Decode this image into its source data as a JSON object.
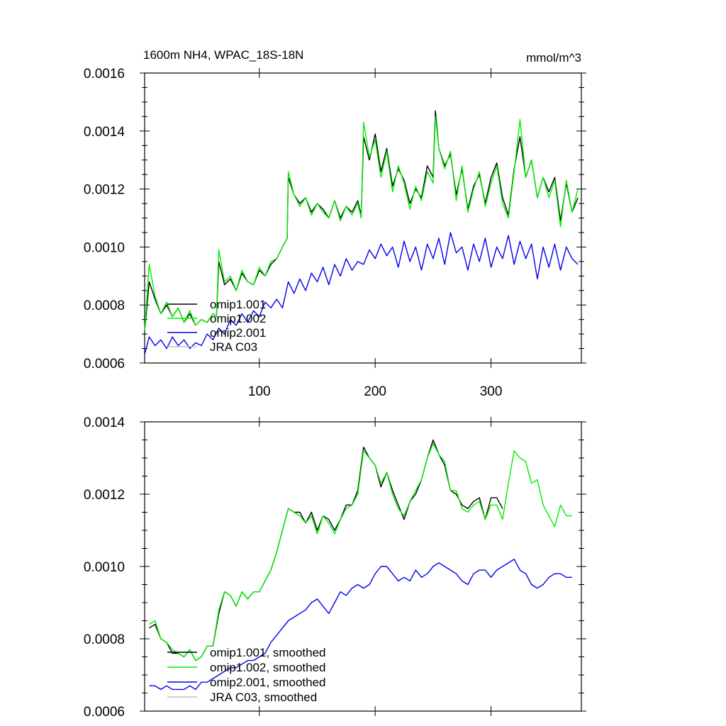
{
  "chart_data": [
    {
      "type": "line",
      "title": "1600m NH4, WPAC_18S-18N",
      "units": "mmol/m^3",
      "xlim": [
        1,
        378
      ],
      "ylim": [
        0.0006,
        0.0016
      ],
      "xticks": [
        100,
        200,
        300
      ],
      "xtick_labels": [
        "100",
        "200",
        "300"
      ],
      "yticks": [
        0.0006,
        0.0008,
        0.001,
        0.0012,
        0.0014,
        0.0016
      ],
      "ytick_labels": [
        "0.0006",
        "0.0008",
        "0.0010",
        "0.0012",
        "0.0014",
        "0.0016"
      ],
      "legend_position": "lower-left",
      "series": [
        {
          "name": "omip1.001",
          "color": "#000000",
          "x": [
            1,
            5,
            10,
            15,
            20,
            25,
            30,
            35,
            40,
            45,
            50,
            55,
            60,
            63,
            65,
            70,
            75,
            80,
            85,
            90,
            95,
            100,
            105,
            110,
            115,
            120,
            124,
            125,
            130,
            135,
            140,
            145,
            150,
            155,
            160,
            165,
            170,
            175,
            180,
            185,
            188,
            190,
            195,
            200,
            205,
            210,
            215,
            220,
            225,
            230,
            235,
            240,
            245,
            250,
            252,
            255,
            260,
            265,
            270,
            275,
            280,
            285,
            290,
            295,
            300,
            305,
            310,
            315,
            320,
            325,
            330,
            335,
            340,
            345,
            350,
            355,
            360,
            365,
            370,
            375
          ],
          "values": [
            0.00071,
            0.00088,
            0.00082,
            0.00077,
            0.0008,
            0.00076,
            0.00079,
            0.00074,
            0.00077,
            0.00073,
            0.00075,
            0.00074,
            0.00077,
            0.00076,
            0.00095,
            0.00087,
            0.00089,
            0.00085,
            0.00091,
            0.00088,
            0.00087,
            0.00092,
            0.0009,
            0.00094,
            0.00096,
            0.001,
            0.00103,
            0.00124,
            0.00118,
            0.00115,
            0.00117,
            0.00112,
            0.00115,
            0.00113,
            0.0011,
            0.00116,
            0.0011,
            0.00114,
            0.00112,
            0.00116,
            0.00111,
            0.00138,
            0.0013,
            0.00139,
            0.00126,
            0.00134,
            0.00121,
            0.00127,
            0.00123,
            0.00115,
            0.0012,
            0.00117,
            0.00128,
            0.00124,
            0.00147,
            0.00134,
            0.00128,
            0.00132,
            0.00118,
            0.00127,
            0.00113,
            0.00121,
            0.00125,
            0.00115,
            0.00124,
            0.00129,
            0.00117,
            0.00111,
            0.00127,
            0.00138,
            0.00124,
            0.0013,
            0.00117,
            0.00124,
            0.00119,
            0.00124,
            0.00109,
            0.00122,
            0.00112,
            0.00117
          ]
        },
        {
          "name": "omip1.002",
          "color": "#00ee00",
          "x": [
            1,
            5,
            10,
            15,
            20,
            25,
            30,
            35,
            40,
            45,
            50,
            55,
            60,
            63,
            65,
            70,
            75,
            80,
            85,
            90,
            95,
            100,
            105,
            110,
            115,
            120,
            124,
            125,
            130,
            135,
            140,
            145,
            150,
            155,
            160,
            165,
            170,
            175,
            180,
            185,
            188,
            190,
            195,
            200,
            205,
            210,
            215,
            220,
            225,
            230,
            235,
            240,
            245,
            250,
            252,
            255,
            260,
            265,
            270,
            275,
            280,
            285,
            290,
            295,
            300,
            305,
            310,
            315,
            320,
            325,
            330,
            335,
            340,
            345,
            350,
            355,
            360,
            365,
            370,
            375
          ],
          "values": [
            0.00071,
            0.00094,
            0.00083,
            0.00077,
            0.00081,
            0.00076,
            0.00079,
            0.00074,
            0.00078,
            0.00073,
            0.00075,
            0.00074,
            0.00077,
            0.00076,
            0.00099,
            0.00088,
            0.0009,
            0.00085,
            0.00092,
            0.00088,
            0.00087,
            0.00093,
            0.0009,
            0.00095,
            0.00096,
            0.001,
            0.00103,
            0.00126,
            0.00118,
            0.00114,
            0.00117,
            0.00111,
            0.00115,
            0.00112,
            0.0011,
            0.00116,
            0.00109,
            0.00114,
            0.00111,
            0.00115,
            0.0011,
            0.00143,
            0.00131,
            0.00137,
            0.00124,
            0.00133,
            0.00119,
            0.00128,
            0.00122,
            0.00113,
            0.00121,
            0.00116,
            0.00126,
            0.00122,
            0.00145,
            0.00134,
            0.00127,
            0.00133,
            0.00116,
            0.00128,
            0.00112,
            0.0012,
            0.00126,
            0.00114,
            0.00122,
            0.00128,
            0.00115,
            0.0011,
            0.00126,
            0.00144,
            0.00124,
            0.0013,
            0.00117,
            0.00124,
            0.00117,
            0.00123,
            0.00107,
            0.00123,
            0.00112,
            0.0012
          ]
        },
        {
          "name": "omip2.001",
          "color": "#0000ee",
          "x": [
            1,
            5,
            10,
            15,
            20,
            25,
            30,
            35,
            40,
            45,
            50,
            55,
            60,
            65,
            70,
            75,
            80,
            85,
            90,
            95,
            100,
            105,
            110,
            115,
            120,
            125,
            130,
            135,
            140,
            145,
            150,
            155,
            160,
            165,
            170,
            175,
            180,
            185,
            190,
            195,
            200,
            205,
            210,
            215,
            220,
            225,
            230,
            235,
            240,
            245,
            250,
            255,
            260,
            265,
            270,
            275,
            280,
            285,
            290,
            295,
            300,
            305,
            310,
            315,
            320,
            325,
            330,
            335,
            340,
            345,
            350,
            355,
            360,
            365,
            370,
            375
          ],
          "values": [
            0.00063,
            0.00069,
            0.00066,
            0.00068,
            0.00065,
            0.00069,
            0.00066,
            0.00068,
            0.00065,
            0.00067,
            0.00066,
            0.0007,
            0.00068,
            0.00072,
            0.0007,
            0.00075,
            0.00073,
            0.00077,
            0.00074,
            0.00078,
            0.00076,
            0.00081,
            0.00079,
            0.00082,
            0.00079,
            0.00088,
            0.00084,
            0.00089,
            0.00085,
            0.00091,
            0.00088,
            0.00093,
            0.00087,
            0.00094,
            0.0009,
            0.00096,
            0.00092,
            0.00095,
            0.00094,
            0.00099,
            0.00096,
            0.00101,
            0.00097,
            0.001,
            0.00093,
            0.00102,
            0.00095,
            0.001,
            0.00092,
            0.00101,
            0.00096,
            0.00103,
            0.00094,
            0.00105,
            0.00098,
            0.001,
            0.00092,
            0.00101,
            0.00095,
            0.00103,
            0.00093,
            0.001,
            0.00096,
            0.00104,
            0.00094,
            0.00102,
            0.00096,
            0.00101,
            0.00089,
            0.001,
            0.00093,
            0.00101,
            0.00092,
            0.001,
            0.00096,
            0.00094
          ]
        },
        {
          "name": "JRA C03",
          "color": "#c0c0c0",
          "x": [],
          "values": []
        }
      ]
    },
    {
      "type": "line",
      "ylim": [
        0.0006,
        0.0014
      ],
      "xlim": [
        1,
        378
      ],
      "xticks": [
        100,
        200,
        300
      ],
      "yticks": [
        0.0006,
        0.0008,
        0.001,
        0.0012,
        0.0014
      ],
      "ytick_labels": [
        "0.0006",
        "0.0008",
        "0.0010",
        "0.0012",
        "0.0014"
      ],
      "legend_position": "lower-left",
      "series": [
        {
          "name": "omip1.001, smoothed",
          "color": "#000000",
          "x": [
            5,
            10,
            15,
            20,
            25,
            30,
            35,
            40,
            45,
            50,
            55,
            60,
            65,
            70,
            75,
            80,
            85,
            90,
            95,
            100,
            105,
            110,
            115,
            120,
            125,
            130,
            135,
            140,
            145,
            150,
            155,
            160,
            165,
            170,
            175,
            180,
            185,
            190,
            195,
            200,
            205,
            210,
            215,
            220,
            225,
            230,
            235,
            240,
            245,
            250,
            255,
            260,
            265,
            270,
            275,
            280,
            285,
            290,
            295,
            300,
            305,
            310
          ],
          "values": [
            0.00083,
            0.00084,
            0.0008,
            0.00079,
            0.00076,
            0.00076,
            0.00075,
            0.00077,
            0.00074,
            0.00075,
            0.00078,
            0.00078,
            0.00087,
            0.00093,
            0.00092,
            0.00089,
            0.00093,
            0.00091,
            0.00093,
            0.00093,
            0.00096,
            0.00099,
            0.00104,
            0.0011,
            0.00116,
            0.00115,
            0.00115,
            0.00112,
            0.00115,
            0.0011,
            0.00114,
            0.00113,
            0.0011,
            0.00113,
            0.00117,
            0.00117,
            0.00121,
            0.00133,
            0.0013,
            0.00128,
            0.00122,
            0.00126,
            0.00121,
            0.00117,
            0.00113,
            0.00118,
            0.0012,
            0.00124,
            0.0013,
            0.00135,
            0.00131,
            0.00128,
            0.00121,
            0.0012,
            0.00117,
            0.00116,
            0.00118,
            0.00119,
            0.00113,
            0.00119,
            0.00119,
            0.00116
          ]
        },
        {
          "name": "omip1.002, smoothed",
          "color": "#00ee00",
          "x": [
            5,
            10,
            15,
            20,
            25,
            30,
            35,
            40,
            45,
            50,
            55,
            60,
            65,
            70,
            75,
            80,
            85,
            90,
            95,
            100,
            105,
            110,
            115,
            120,
            125,
            130,
            135,
            140,
            145,
            150,
            155,
            160,
            165,
            170,
            175,
            180,
            185,
            190,
            195,
            200,
            205,
            210,
            215,
            220,
            225,
            230,
            235,
            240,
            245,
            250,
            255,
            260,
            265,
            270,
            275,
            280,
            285,
            290,
            295,
            300,
            305,
            310,
            315,
            320,
            325,
            330,
            335,
            340,
            345,
            350,
            355,
            360,
            365,
            370
          ],
          "values": [
            0.00084,
            0.00085,
            0.0008,
            0.00079,
            0.00077,
            0.00076,
            0.00075,
            0.00077,
            0.00074,
            0.00075,
            0.00078,
            0.00078,
            0.00088,
            0.00093,
            0.00092,
            0.00089,
            0.00093,
            0.00091,
            0.00093,
            0.00093,
            0.00096,
            0.00099,
            0.00104,
            0.0011,
            0.00116,
            0.00115,
            0.00114,
            0.00112,
            0.00114,
            0.00109,
            0.00114,
            0.00112,
            0.00109,
            0.00113,
            0.00116,
            0.00117,
            0.0012,
            0.00132,
            0.0013,
            0.00128,
            0.00123,
            0.00126,
            0.0012,
            0.00116,
            0.00114,
            0.00118,
            0.00121,
            0.00124,
            0.0013,
            0.00134,
            0.00131,
            0.00129,
            0.00121,
            0.00121,
            0.00116,
            0.00115,
            0.00117,
            0.00118,
            0.00113,
            0.00117,
            0.00117,
            0.00113,
            0.00123,
            0.00132,
            0.0013,
            0.00129,
            0.00123,
            0.00124,
            0.00117,
            0.00114,
            0.00111,
            0.00117,
            0.00114,
            0.00114
          ]
        },
        {
          "name": "omip2.001, smoothed",
          "color": "#0000ee",
          "x": [
            5,
            10,
            15,
            20,
            25,
            30,
            35,
            40,
            45,
            50,
            55,
            60,
            65,
            70,
            75,
            80,
            85,
            90,
            95,
            100,
            105,
            110,
            115,
            120,
            125,
            130,
            135,
            140,
            145,
            150,
            155,
            160,
            165,
            170,
            175,
            180,
            185,
            190,
            195,
            200,
            205,
            210,
            215,
            220,
            225,
            230,
            235,
            240,
            245,
            250,
            255,
            260,
            265,
            270,
            275,
            280,
            285,
            290,
            295,
            300,
            305,
            310,
            315,
            320,
            325,
            330,
            335,
            340,
            345,
            350,
            355,
            360,
            365,
            370
          ],
          "values": [
            0.00067,
            0.00067,
            0.00066,
            0.00067,
            0.00066,
            0.00066,
            0.00066,
            0.00067,
            0.00066,
            0.00068,
            0.00068,
            0.00069,
            0.0007,
            0.00071,
            0.00072,
            0.00072,
            0.00073,
            0.00074,
            0.00074,
            0.00075,
            0.00076,
            0.00079,
            0.00081,
            0.00083,
            0.00085,
            0.00086,
            0.00087,
            0.00088,
            0.0009,
            0.00091,
            0.00089,
            0.00087,
            0.0009,
            0.00093,
            0.00092,
            0.00094,
            0.00095,
            0.00094,
            0.00095,
            0.00098,
            0.001,
            0.001,
            0.00098,
            0.00096,
            0.00097,
            0.00096,
            0.00099,
            0.00097,
            0.00098,
            0.001,
            0.00101,
            0.001,
            0.00099,
            0.00098,
            0.00096,
            0.00095,
            0.00098,
            0.00099,
            0.00099,
            0.00097,
            0.00099,
            0.001,
            0.00101,
            0.00102,
            0.00099,
            0.00098,
            0.00095,
            0.00094,
            0.00095,
            0.00097,
            0.00098,
            0.00098,
            0.00097,
            0.00097
          ]
        },
        {
          "name": "JRA C03, smoothed",
          "color": "#c0c0c0",
          "x": [],
          "values": []
        }
      ]
    }
  ]
}
